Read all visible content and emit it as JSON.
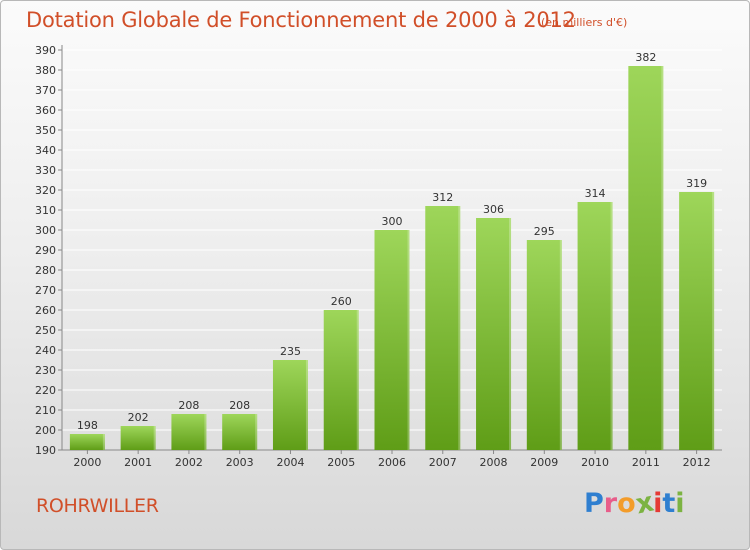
{
  "header": {
    "title": "Dotation Globale de Fonctionnement de 2000 à 2012",
    "subtitle": "(en milliers d'€)"
  },
  "footer": {
    "commune": "ROHRWILLER",
    "logo": [
      "P",
      "r",
      "o",
      "x",
      "i",
      "t",
      "i"
    ],
    "logo_colors": [
      "#2f7fd0",
      "#e85d8a",
      "#f39c2a",
      "#7cb342",
      "#e53935",
      "#2f7fd0",
      "#7cb342"
    ]
  },
  "chart_data": {
    "type": "bar",
    "title": "Dotation Globale de Fonctionnement de 2000 à 2012",
    "subtitle": "(en milliers d'€)",
    "categories": [
      "2000",
      "2001",
      "2002",
      "2003",
      "2004",
      "2005",
      "2006",
      "2007",
      "2008",
      "2009",
      "2010",
      "2011",
      "2012"
    ],
    "values": [
      198,
      202,
      208,
      208,
      235,
      260,
      300,
      312,
      306,
      295,
      314,
      382,
      319
    ],
    "ylim": [
      190,
      390
    ],
    "ytick_step": 10,
    "grid": true,
    "legend": "none",
    "colors": {
      "bar_top": "#9ed65a",
      "bar_bottom": "#5f9d17",
      "grid": "#ffffff",
      "axis": "#888888"
    }
  }
}
